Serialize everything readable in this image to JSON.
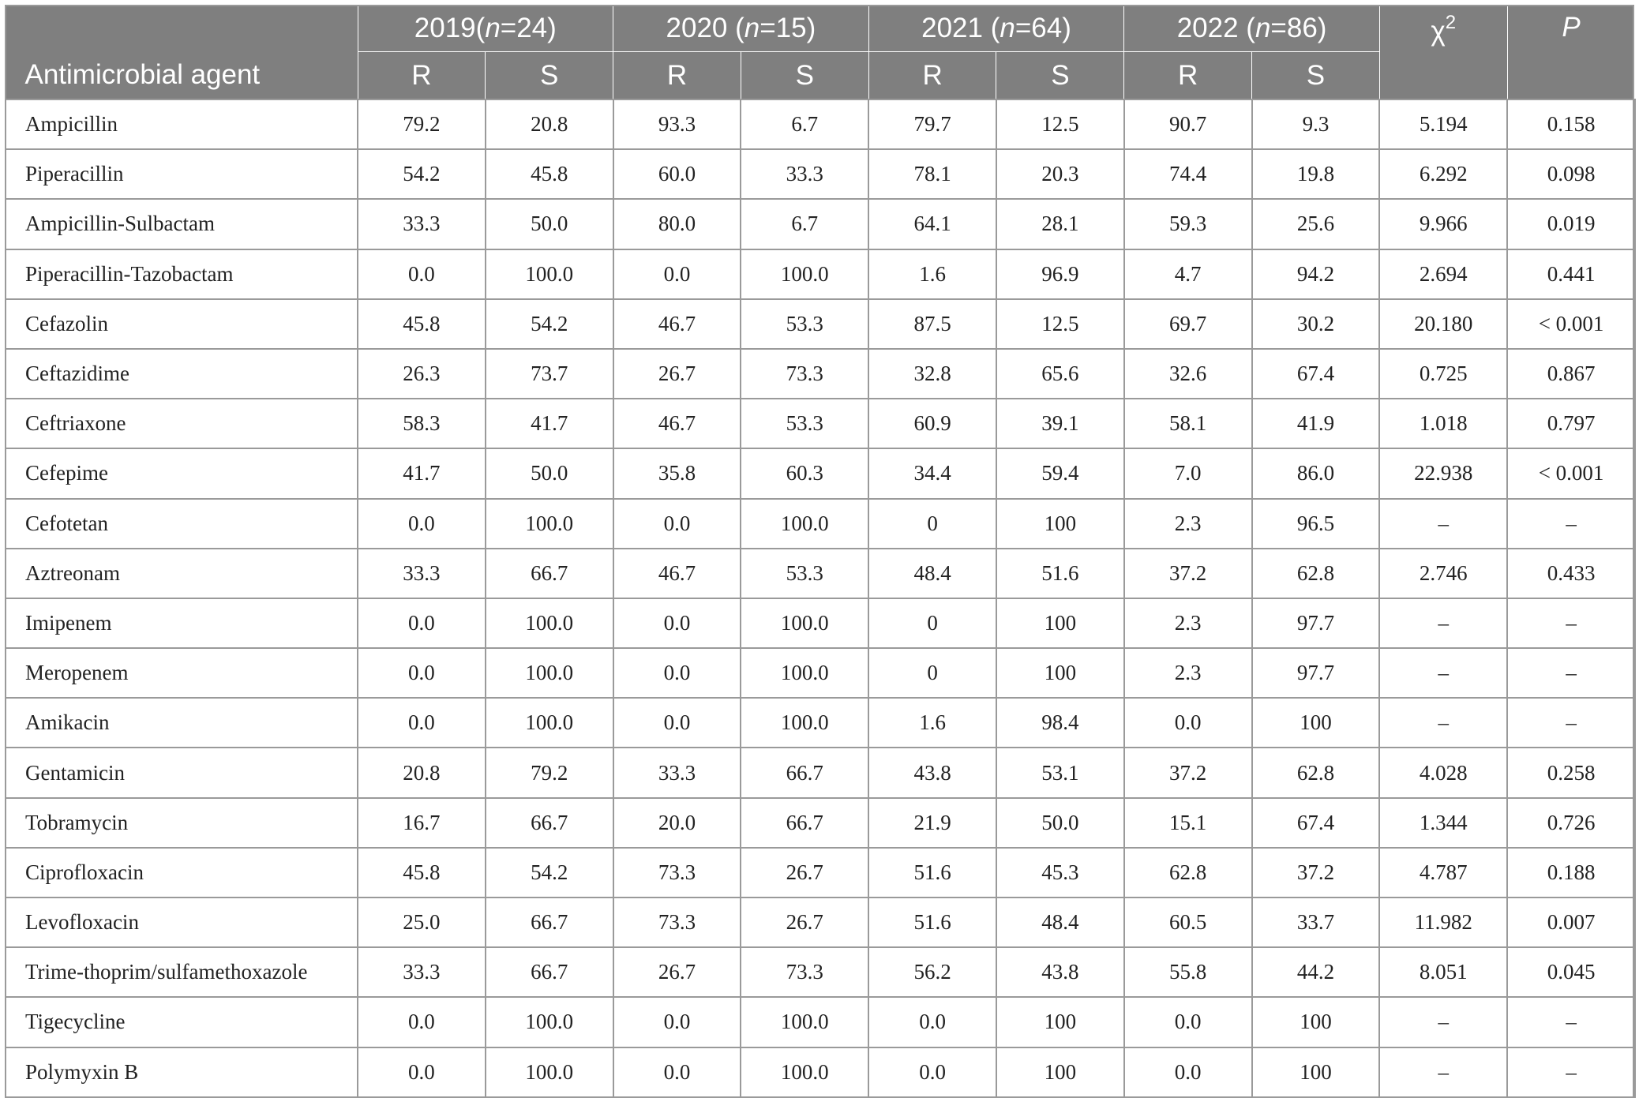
{
  "header": {
    "agent_label": "Antimicrobial agent",
    "years": [
      {
        "year": "2019",
        "open": "(",
        "n_var": "n",
        "eq": "=24)"
      },
      {
        "year": "2020 ",
        "open": "(",
        "n_var": "n",
        "eq": "=15)"
      },
      {
        "year": "2021 ",
        "open": "(",
        "n_var": "n",
        "eq": "=64)"
      },
      {
        "year": "2022 ",
        "open": "(",
        "n_var": "n",
        "eq": "=86)"
      }
    ],
    "sub_r": "R",
    "sub_s": "S",
    "chi_symbol": "χ",
    "chi_power": "2",
    "p_label": "P"
  },
  "rows": [
    {
      "agent": "Ampicillin",
      "vals": [
        "79.2",
        "20.8",
        "93.3",
        "6.7",
        "79.7",
        "12.5",
        "90.7",
        "9.3",
        "5.194",
        "0.158"
      ]
    },
    {
      "agent": "Piperacillin",
      "vals": [
        "54.2",
        "45.8",
        "60.0",
        "33.3",
        "78.1",
        "20.3",
        "74.4",
        "19.8",
        "6.292",
        "0.098"
      ]
    },
    {
      "agent": "Ampicillin-Sulbactam",
      "vals": [
        "33.3",
        "50.0",
        "80.0",
        "6.7",
        "64.1",
        "28.1",
        "59.3",
        "25.6",
        "9.966",
        "0.019"
      ]
    },
    {
      "agent": "Piperacillin-Tazobactam",
      "vals": [
        "0.0",
        "100.0",
        "0.0",
        "100.0",
        "1.6",
        "96.9",
        "4.7",
        "94.2",
        "2.694",
        "0.441"
      ]
    },
    {
      "agent": "Cefazolin",
      "vals": [
        "45.8",
        "54.2",
        "46.7",
        "53.3",
        "87.5",
        "12.5",
        "69.7",
        "30.2",
        "20.180",
        "< 0.001"
      ]
    },
    {
      "agent": "Ceftazidime",
      "vals": [
        "26.3",
        "73.7",
        "26.7",
        "73.3",
        "32.8",
        "65.6",
        "32.6",
        "67.4",
        "0.725",
        "0.867"
      ]
    },
    {
      "agent": "Ceftriaxone",
      "vals": [
        "58.3",
        "41.7",
        "46.7",
        "53.3",
        "60.9",
        "39.1",
        "58.1",
        "41.9",
        "1.018",
        "0.797"
      ]
    },
    {
      "agent": "Cefepime",
      "vals": [
        "41.7",
        "50.0",
        "35.8",
        "60.3",
        "34.4",
        "59.4",
        "7.0",
        "86.0",
        "22.938",
        "< 0.001"
      ]
    },
    {
      "agent": "Cefotetan",
      "vals": [
        "0.0",
        "100.0",
        "0.0",
        "100.0",
        "0",
        "100",
        "2.3",
        "96.5",
        "–",
        "–"
      ]
    },
    {
      "agent": "Aztreonam",
      "vals": [
        "33.3",
        "66.7",
        "46.7",
        "53.3",
        "48.4",
        "51.6",
        "37.2",
        "62.8",
        "2.746",
        "0.433"
      ]
    },
    {
      "agent": "Imipenem",
      "vals": [
        "0.0",
        "100.0",
        "0.0",
        "100.0",
        "0",
        "100",
        "2.3",
        "97.7",
        "–",
        "–"
      ]
    },
    {
      "agent": "Meropenem",
      "vals": [
        "0.0",
        "100.0",
        "0.0",
        "100.0",
        "0",
        "100",
        "2.3",
        "97.7",
        "–",
        "–"
      ]
    },
    {
      "agent": "Amikacin",
      "vals": [
        "0.0",
        "100.0",
        "0.0",
        "100.0",
        "1.6",
        "98.4",
        "0.0",
        "100",
        "–",
        "–"
      ]
    },
    {
      "agent": "Gentamicin",
      "vals": [
        "20.8",
        "79.2",
        "33.3",
        "66.7",
        "43.8",
        "53.1",
        "37.2",
        "62.8",
        "4.028",
        "0.258"
      ]
    },
    {
      "agent": "Tobramycin",
      "vals": [
        "16.7",
        "66.7",
        "20.0",
        "66.7",
        "21.9",
        "50.0",
        "15.1",
        "67.4",
        "1.344",
        "0.726"
      ]
    },
    {
      "agent": "Ciprofloxacin",
      "vals": [
        "45.8",
        "54.2",
        "73.3",
        "26.7",
        "51.6",
        "45.3",
        "62.8",
        "37.2",
        "4.787",
        "0.188"
      ]
    },
    {
      "agent": "Levofloxacin",
      "vals": [
        "25.0",
        "66.7",
        "73.3",
        "26.7",
        "51.6",
        "48.4",
        "60.5",
        "33.7",
        "11.982",
        "0.007"
      ]
    },
    {
      "agent": "Trime-thoprim/sulfamethoxazole",
      "vals": [
        "33.3",
        "66.7",
        "26.7",
        "73.3",
        "56.2",
        "43.8",
        "55.8",
        "44.2",
        "8.051",
        "0.045"
      ]
    },
    {
      "agent": "Tigecycline",
      "vals": [
        "0.0",
        "100.0",
        "0.0",
        "100.0",
        "0.0",
        "100",
        "0.0",
        "100",
        "–",
        "–"
      ]
    },
    {
      "agent": "Polymyxin B",
      "vals": [
        "0.0",
        "100.0",
        "0.0",
        "100.0",
        "0.0",
        "100",
        "0.0",
        "100",
        "–",
        "–"
      ]
    }
  ],
  "colors": {
    "header_bg": "#7f7f7f",
    "header_text": "#ffffff",
    "grid": "#9a9a9a"
  }
}
